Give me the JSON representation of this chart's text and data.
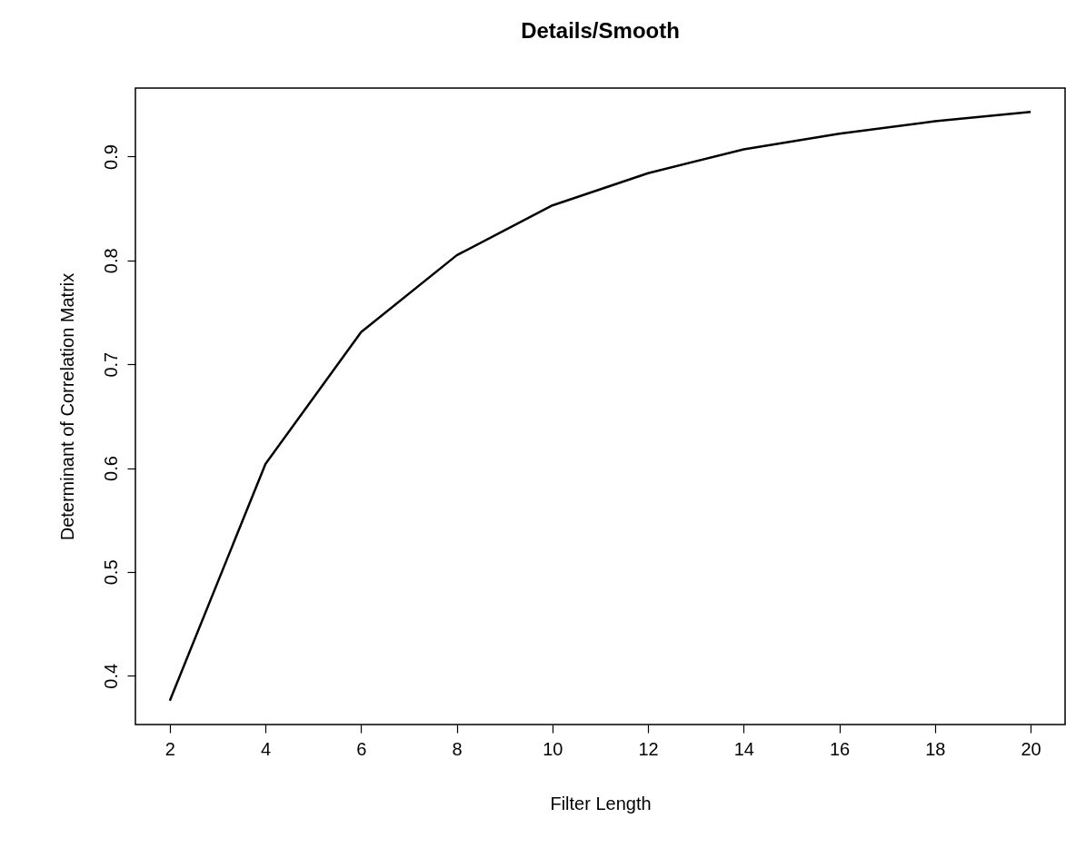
{
  "chart_data": {
    "type": "line",
    "title": "Details/Smooth",
    "xlabel": "Filter Length",
    "ylabel": "Determinant of Correlation Matrix",
    "x": [
      2,
      4,
      6,
      8,
      10,
      12,
      14,
      16,
      18,
      20
    ],
    "series": [
      {
        "color": "#000000",
        "values": [
          0.376,
          0.604,
          0.731,
          0.805,
          0.853,
          0.884,
          0.907,
          0.922,
          0.934,
          0.943
        ]
      }
    ],
    "xlim": [
      1.28,
      20.72
    ],
    "xticks": [
      2,
      4,
      6,
      8,
      10,
      12,
      14,
      16,
      18,
      20
    ],
    "ylim": [
      0.353,
      0.966
    ],
    "yticks": [
      0.4,
      0.5,
      0.6,
      0.7,
      0.8,
      0.9
    ],
    "grid": false,
    "legend": false,
    "marker": "none",
    "line_style": "solid"
  }
}
